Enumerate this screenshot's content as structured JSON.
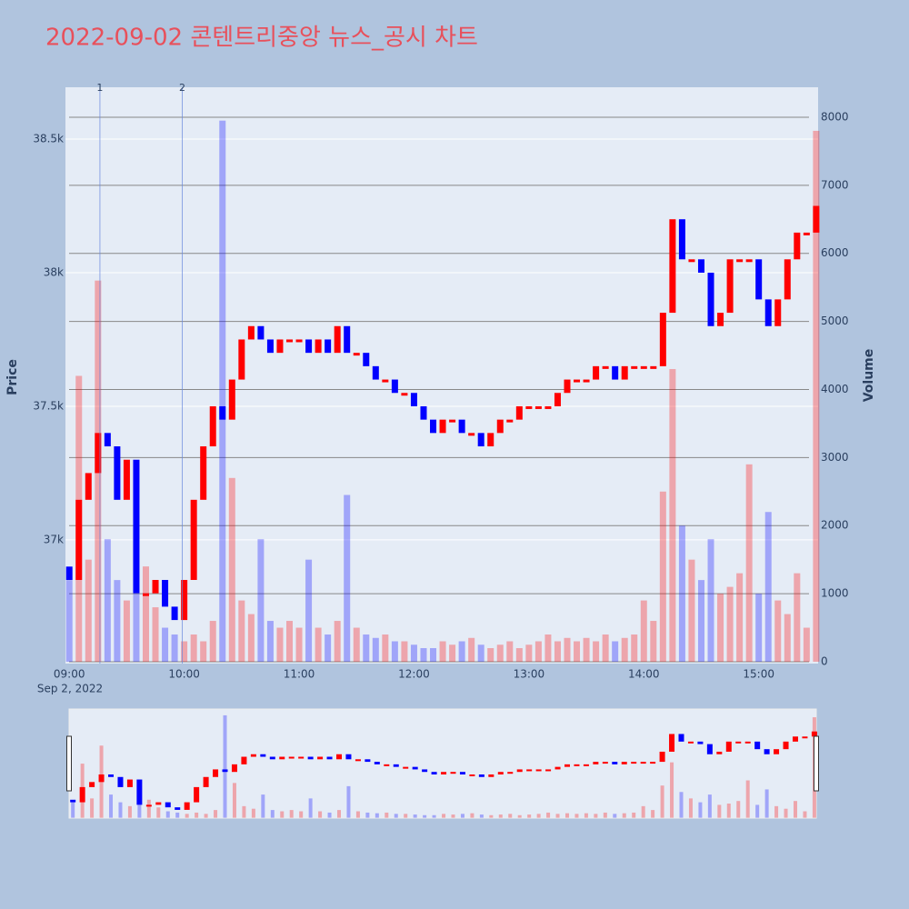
{
  "chart_data": {
    "type": "candlestick",
    "title": "2022-09-02 콘텐트리중앙 뉴스_공시 차트",
    "x": [
      "09:00",
      "09:05",
      "09:10",
      "09:15",
      "09:20",
      "09:25",
      "09:30",
      "09:35",
      "09:40",
      "09:45",
      "09:50",
      "09:55",
      "10:00",
      "10:05",
      "10:10",
      "10:15",
      "10:20",
      "10:25",
      "10:30",
      "10:35",
      "10:40",
      "10:45",
      "10:50",
      "10:55",
      "11:00",
      "11:05",
      "11:10",
      "11:15",
      "11:20",
      "11:25",
      "11:30",
      "11:35",
      "11:40",
      "11:45",
      "11:50",
      "11:55",
      "12:00",
      "12:05",
      "12:10",
      "12:15",
      "12:20",
      "12:25",
      "12:30",
      "12:35",
      "12:40",
      "12:45",
      "12:50",
      "12:55",
      "13:00",
      "13:05",
      "13:10",
      "13:15",
      "13:20",
      "13:25",
      "13:30",
      "13:35",
      "13:40",
      "13:45",
      "13:50",
      "13:55",
      "14:00",
      "14:05",
      "14:10",
      "14:15",
      "14:20",
      "14:25",
      "14:30",
      "14:35",
      "14:40",
      "14:45",
      "14:50",
      "14:55",
      "15:00",
      "15:05",
      "15:10",
      "15:15",
      "15:20",
      "15:25",
      "15:30"
    ],
    "open": [
      36900,
      36850,
      37150,
      37250,
      37400,
      37350,
      37150,
      37300,
      36800,
      36800,
      36850,
      36750,
      36700,
      36850,
      37150,
      37350,
      37500,
      37450,
      37600,
      37750,
      37800,
      37750,
      37700,
      37750,
      37750,
      37750,
      37700,
      37750,
      37700,
      37800,
      37700,
      37700,
      37650,
      37600,
      37600,
      37550,
      37550,
      37500,
      37450,
      37400,
      37450,
      37450,
      37400,
      37400,
      37350,
      37400,
      37450,
      37450,
      37500,
      37500,
      37500,
      37500,
      37550,
      37600,
      37600,
      37600,
      37650,
      37650,
      37600,
      37650,
      37650,
      37650,
      37650,
      37850,
      38200,
      38050,
      38050,
      38000,
      37800,
      37850,
      38050,
      38050,
      38050,
      37900,
      37800,
      37900,
      38050,
      38150,
      38150
    ],
    "close": [
      36850,
      37150,
      37250,
      37400,
      37350,
      37150,
      37300,
      36800,
      36800,
      36850,
      36750,
      36700,
      36850,
      37150,
      37350,
      37500,
      37450,
      37600,
      37750,
      37800,
      37750,
      37700,
      37750,
      37750,
      37750,
      37700,
      37750,
      37700,
      37800,
      37700,
      37700,
      37650,
      37600,
      37600,
      37550,
      37550,
      37500,
      37450,
      37400,
      37450,
      37450,
      37400,
      37400,
      37350,
      37400,
      37450,
      37450,
      37500,
      37500,
      37500,
      37500,
      37550,
      37600,
      37600,
      37600,
      37650,
      37650,
      37600,
      37650,
      37650,
      37650,
      37650,
      37850,
      38200,
      38050,
      38050,
      38000,
      37800,
      37850,
      38050,
      38050,
      38050,
      37900,
      37800,
      37900,
      38050,
      38150,
      38150,
      38250
    ],
    "volume": [
      1200,
      4200,
      1500,
      5600,
      1800,
      1200,
      900,
      1000,
      1400,
      800,
      500,
      400,
      300,
      400,
      300,
      600,
      7950,
      2700,
      900,
      700,
      1800,
      600,
      500,
      600,
      500,
      1500,
      500,
      400,
      600,
      2450,
      500,
      400,
      350,
      400,
      300,
      300,
      250,
      200,
      200,
      300,
      250,
      300,
      350,
      250,
      200,
      250,
      300,
      200,
      250,
      300,
      400,
      300,
      350,
      300,
      350,
      300,
      400,
      300,
      350,
      400,
      900,
      600,
      2500,
      4300,
      2000,
      1500,
      1200,
      1800,
      1000,
      1100,
      1300,
      2900,
      1000,
      2200,
      900,
      700,
      1300,
      500,
      7800
    ],
    "up_color": "#ff0000",
    "down_color": "#0000ff",
    "xlim": [
      "08:58",
      "15:31"
    ],
    "xticks": [
      "09:00",
      "10:00",
      "11:00",
      "12:00",
      "13:00",
      "14:00",
      "15:00"
    ],
    "date_label": "Sep 2, 2022",
    "ylabel": "Price",
    "ylim": [
      36537,
      38694
    ],
    "yticks": [
      {
        "value": 37000,
        "label": "37k"
      },
      {
        "value": 37500,
        "label": "37.5k"
      },
      {
        "value": 38000,
        "label": "38k"
      },
      {
        "value": 38500,
        "label": "38.5k"
      }
    ],
    "y2label": "Volume",
    "y2lim": [
      -27,
      8440
    ],
    "y2ticks": [
      0,
      1000,
      2000,
      3000,
      4000,
      5000,
      6000,
      7000,
      8000
    ],
    "annotations": [
      {
        "x": "09:16",
        "label": "1"
      },
      {
        "x": "09:59",
        "label": "2"
      }
    ],
    "grid": true
  }
}
